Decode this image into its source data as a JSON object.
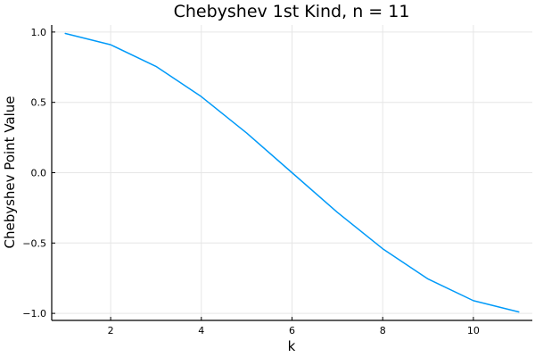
{
  "chart_data": {
    "type": "line",
    "title": "Chebyshev 1st Kind, n = 11",
    "xlabel": "k",
    "ylabel": "Chebyshev Point Value",
    "xlim": [
      0.7,
      11.3
    ],
    "ylim": [
      -1.05,
      1.05
    ],
    "xticks": [
      2,
      4,
      6,
      8,
      10
    ],
    "xtick_labels": [
      "2",
      "4",
      "6",
      "8",
      "10"
    ],
    "yticks": [
      -1.0,
      -0.5,
      0.0,
      0.5,
      1.0
    ],
    "ytick_labels": [
      "−1.0",
      "−0.5",
      "0.0",
      "0.5",
      "1.0"
    ],
    "grid": true,
    "legend": "none",
    "series": [
      {
        "color": "#009af9",
        "x": [
          1,
          2,
          3,
          4,
          5,
          6,
          7,
          8,
          9,
          10,
          11
        ],
        "y": [
          0.9898,
          0.9096,
          0.7557,
          0.5406,
          0.2817,
          0.0,
          -0.2817,
          -0.5406,
          -0.7557,
          -0.9096,
          -0.9898
        ]
      }
    ]
  }
}
